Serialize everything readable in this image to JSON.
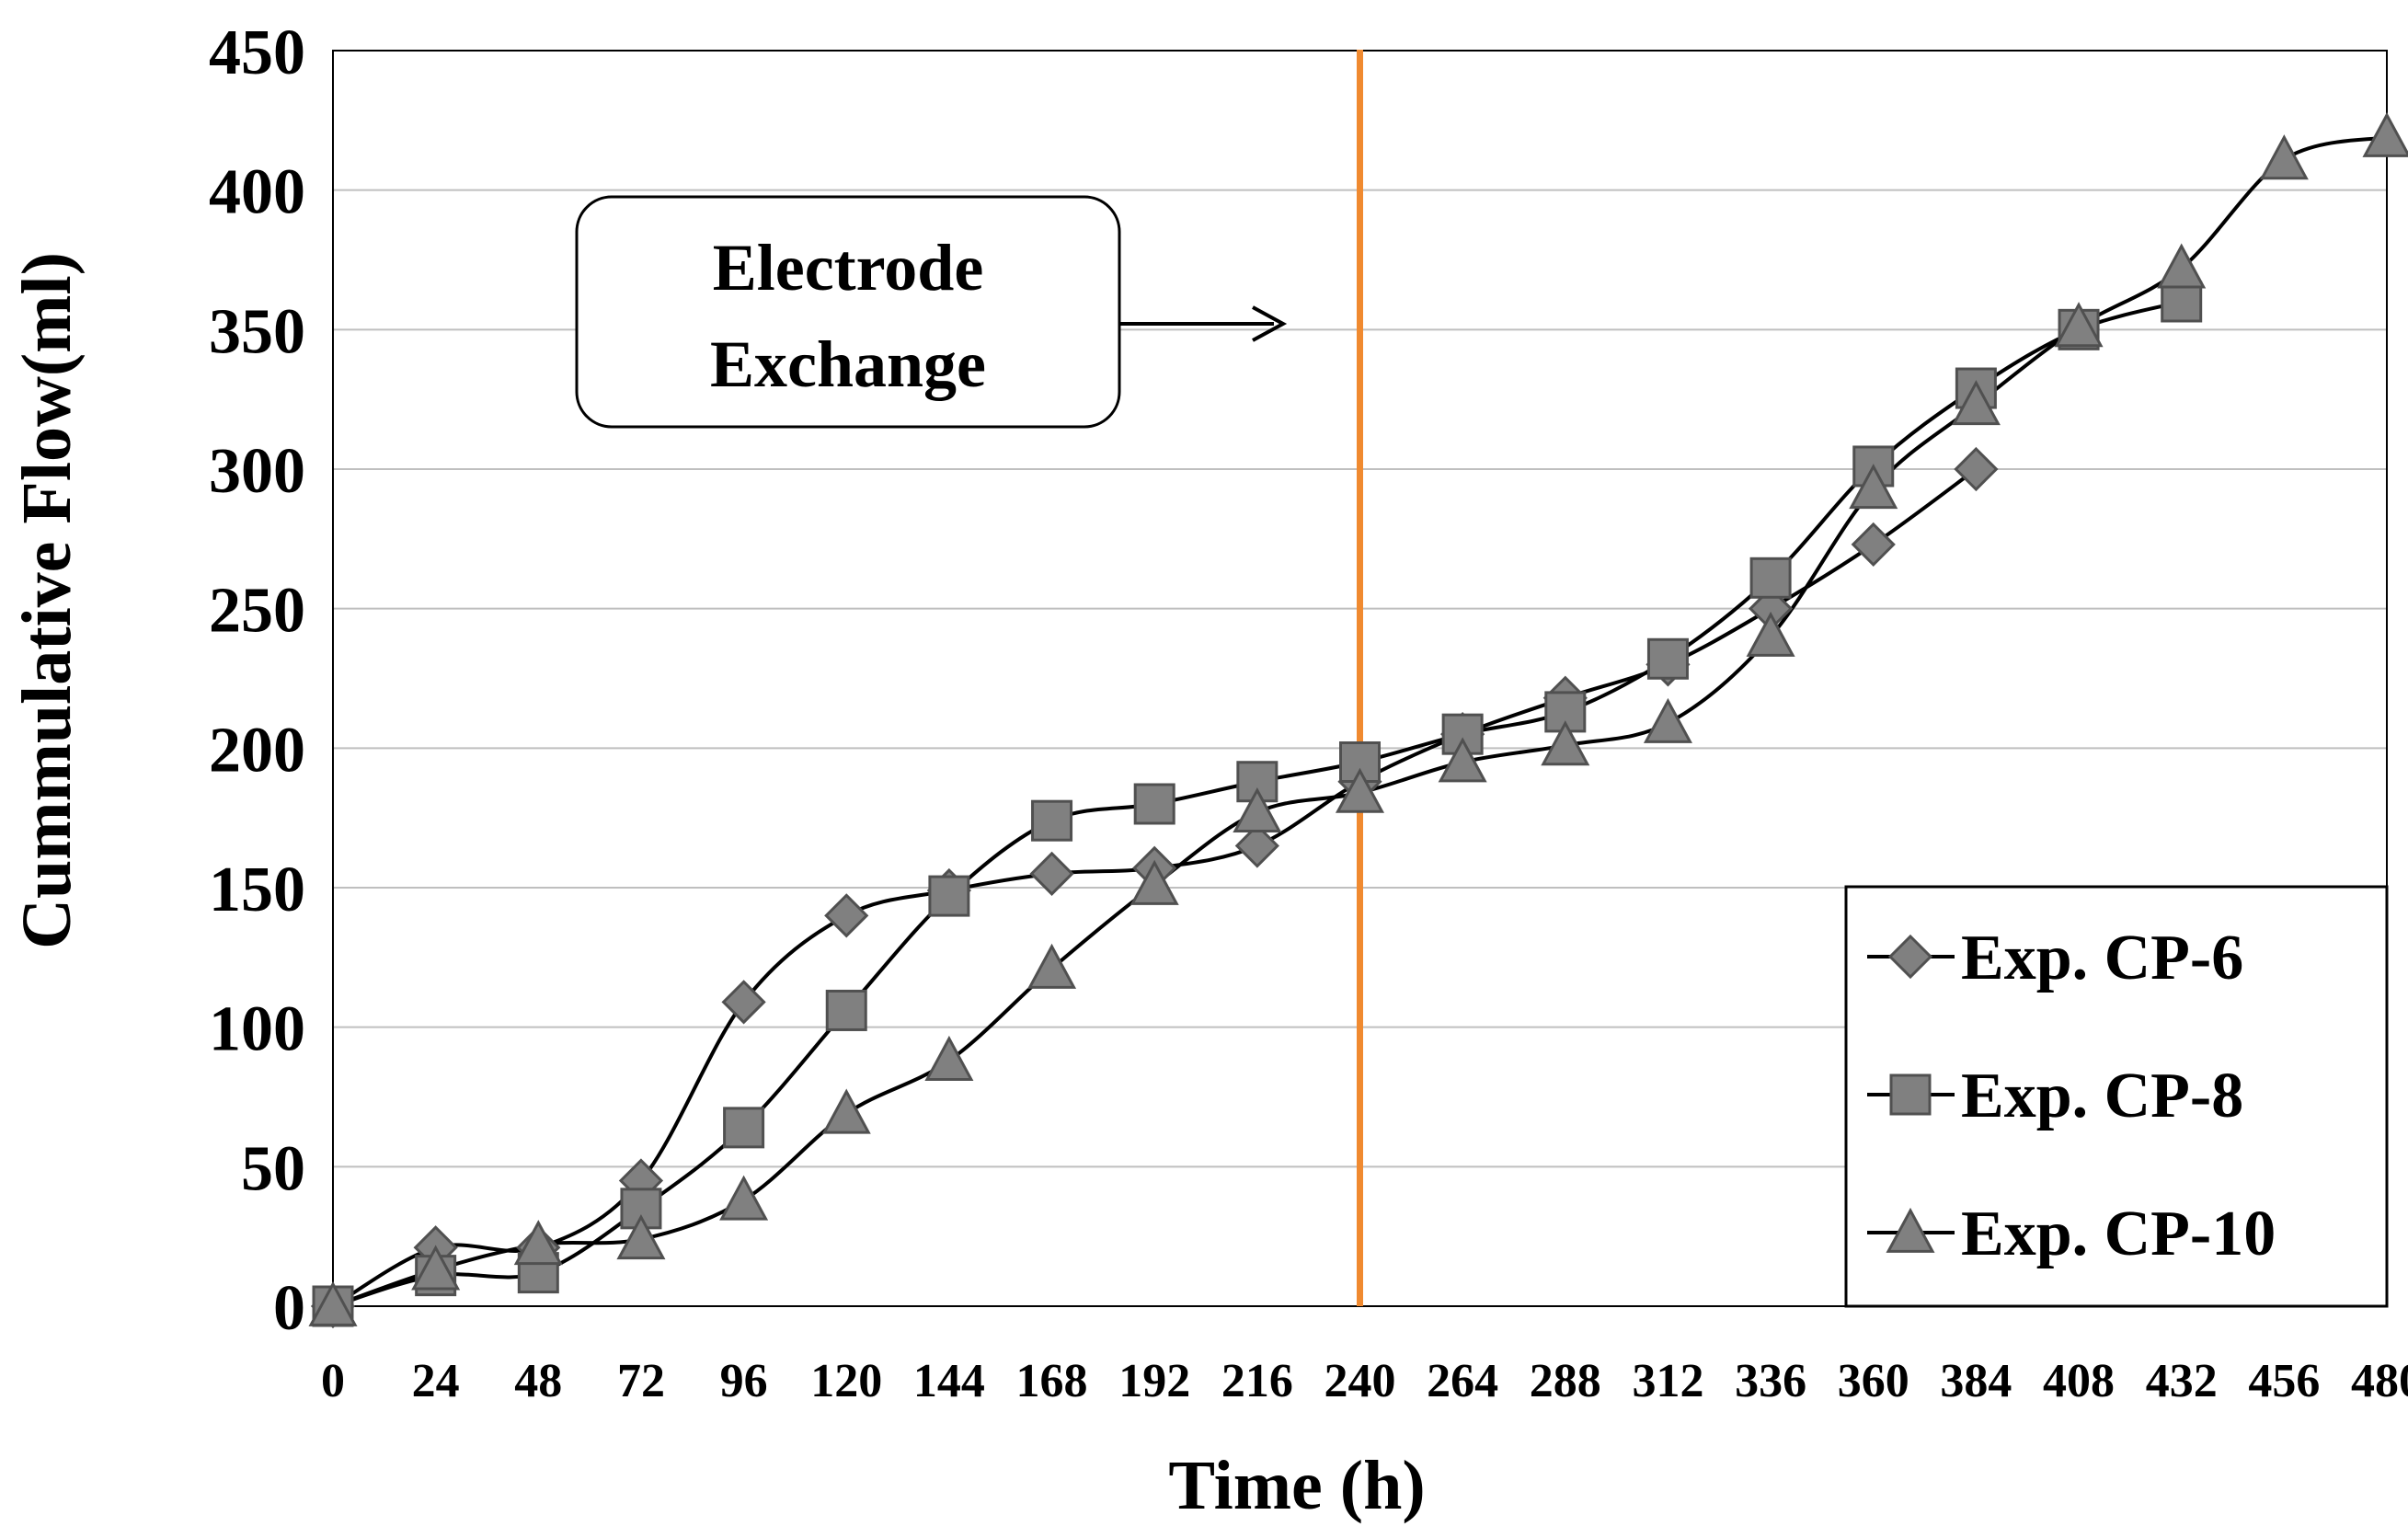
{
  "chart_data": {
    "type": "line",
    "title": "",
    "xlabel": "Time (h)",
    "ylabel": "Cummulative Flow(ml)",
    "xlim": [
      0,
      480
    ],
    "ylim": [
      0,
      450
    ],
    "x_ticks": [
      "0",
      "24",
      "48",
      "72",
      "96",
      "120",
      "144",
      "168",
      "192",
      "216",
      "240",
      "264",
      "288",
      "312",
      "336",
      "360",
      "384",
      "408",
      "432",
      "456",
      "480"
    ],
    "y_ticks": [
      "0",
      "50",
      "100",
      "150",
      "200",
      "250",
      "300",
      "350",
      "400",
      "450"
    ],
    "grid": "horizontal",
    "legend_position": "bottom-right",
    "series": [
      {
        "name": "Exp. CP-6",
        "marker": "diamond",
        "x": [
          0,
          24,
          48,
          72,
          96,
          120,
          144,
          168,
          192,
          216,
          240,
          264,
          288,
          312,
          336,
          360,
          384
        ],
        "values": [
          0,
          21,
          21,
          45,
          109,
          140,
          149,
          155,
          157,
          165,
          188,
          205,
          218,
          230,
          250,
          273,
          300
        ]
      },
      {
        "name": "Exp. CP-8",
        "marker": "square",
        "x": [
          0,
          24,
          48,
          72,
          96,
          120,
          144,
          168,
          192,
          216,
          240,
          264,
          288,
          312,
          336,
          360,
          384,
          408,
          432
        ],
        "values": [
          0,
          11,
          12,
          35,
          64,
          106,
          147,
          174,
          180,
          188,
          195,
          205,
          213,
          232,
          261,
          301,
          329,
          350,
          360
        ]
      },
      {
        "name": "Exp. CP-10",
        "marker": "triangle",
        "x": [
          0,
          24,
          48,
          72,
          96,
          120,
          144,
          168,
          192,
          216,
          240,
          264,
          288,
          312,
          336,
          360,
          384,
          408,
          432,
          456,
          480
        ],
        "values": [
          0,
          13,
          22,
          24,
          38,
          69,
          88,
          121,
          151,
          177,
          184,
          195,
          201,
          209,
          240,
          293,
          323,
          351,
          372,
          411,
          419
        ]
      }
    ],
    "vertical_line": {
      "x": 240,
      "color": "#f08a30"
    },
    "annotation": {
      "line1": "Electrode",
      "line2": "Exchange"
    }
  },
  "colors": {
    "line": "#000000",
    "marker_fill": "#808080",
    "marker_stroke": "#505050",
    "grid": "#bfbfbf",
    "accent": "#f08a30"
  }
}
